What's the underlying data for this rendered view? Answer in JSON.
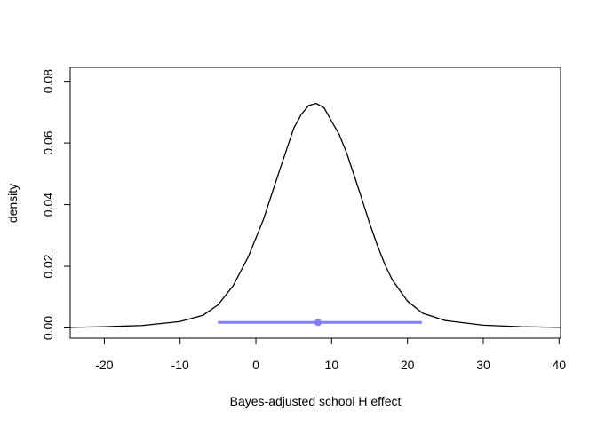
{
  "chart_data": {
    "type": "line",
    "title": "",
    "xlabel": "Bayes-adjusted school H effect",
    "ylabel": "density",
    "xlim": [
      -24.5,
      40.2
    ],
    "ylim": [
      -0.0033,
      0.0845
    ],
    "grid": false,
    "xticks": [
      -20,
      -10,
      0,
      10,
      20,
      30,
      40
    ],
    "xtick_labels": [
      "-20",
      "-10",
      "0",
      "10",
      "20",
      "30",
      "40"
    ],
    "yticks": [
      0.0,
      0.02,
      0.04,
      0.06,
      0.08
    ],
    "ytick_labels": [
      "0.00",
      "0.02",
      "0.04",
      "0.06",
      "0.08"
    ],
    "series": [
      {
        "color": "#000000",
        "points": [
          [
            -24.5,
            0.0002
          ],
          [
            -20,
            0.0004
          ],
          [
            -15,
            0.0008
          ],
          [
            -10,
            0.0021
          ],
          [
            -7,
            0.0041
          ],
          [
            -5,
            0.0075
          ],
          [
            -3,
            0.0137
          ],
          [
            -1,
            0.0231
          ],
          [
            1,
            0.0352
          ],
          [
            3,
            0.0502
          ],
          [
            5,
            0.0648
          ],
          [
            6,
            0.0693
          ],
          [
            7,
            0.0722
          ],
          [
            8,
            0.0728
          ],
          [
            9,
            0.0714
          ],
          [
            10,
            0.067
          ],
          [
            11,
            0.0627
          ],
          [
            12,
            0.0566
          ],
          [
            13,
            0.0492
          ],
          [
            14,
            0.0417
          ],
          [
            15,
            0.034
          ],
          [
            16,
            0.027
          ],
          [
            17,
            0.0207
          ],
          [
            18,
            0.0156
          ],
          [
            20,
            0.0087
          ],
          [
            22,
            0.0048
          ],
          [
            25,
            0.0024
          ],
          [
            30,
            0.0009
          ],
          [
            35,
            0.0004
          ],
          [
            40.2,
            0.0002
          ]
        ]
      }
    ],
    "interval": {
      "color": "#8080ff",
      "low": -5,
      "high": 21.9,
      "point": 8.2,
      "y": 0.0018
    }
  }
}
